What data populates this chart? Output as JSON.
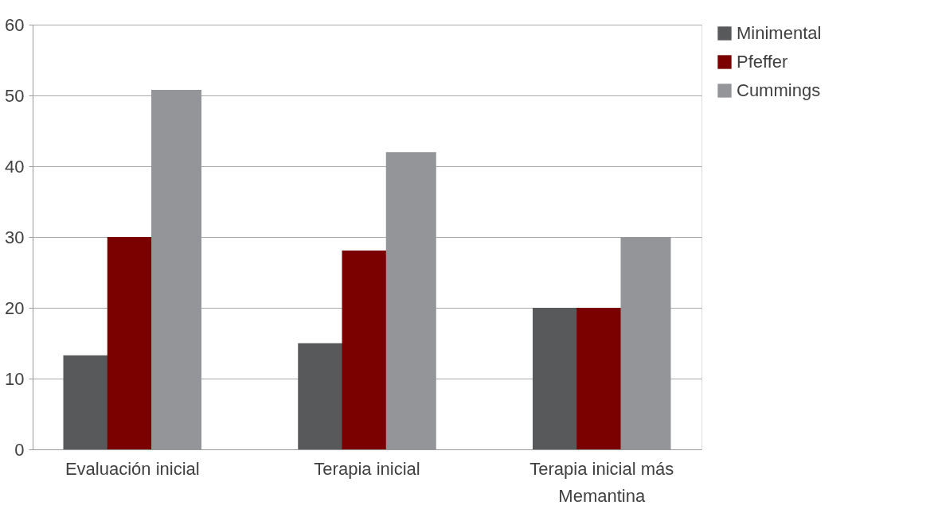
{
  "chart_data": {
    "type": "bar",
    "categories": [
      "Evaluación inicial",
      "Terapia inicial",
      "Terapia inicial más Memantina"
    ],
    "series": [
      {
        "name": "Minimental",
        "color": "#58595b",
        "values": [
          13.3,
          15,
          20
        ]
      },
      {
        "name": "Pfeffer",
        "color": "#7b0000",
        "values": [
          30,
          28.1,
          20
        ]
      },
      {
        "name": "Cummings",
        "color": "#939598",
        "values": [
          50.8,
          42,
          30
        ]
      }
    ],
    "ylim": [
      0,
      60
    ],
    "yticks": [
      0,
      10,
      20,
      30,
      40,
      50,
      60
    ],
    "grid": "y",
    "legend": "right"
  }
}
